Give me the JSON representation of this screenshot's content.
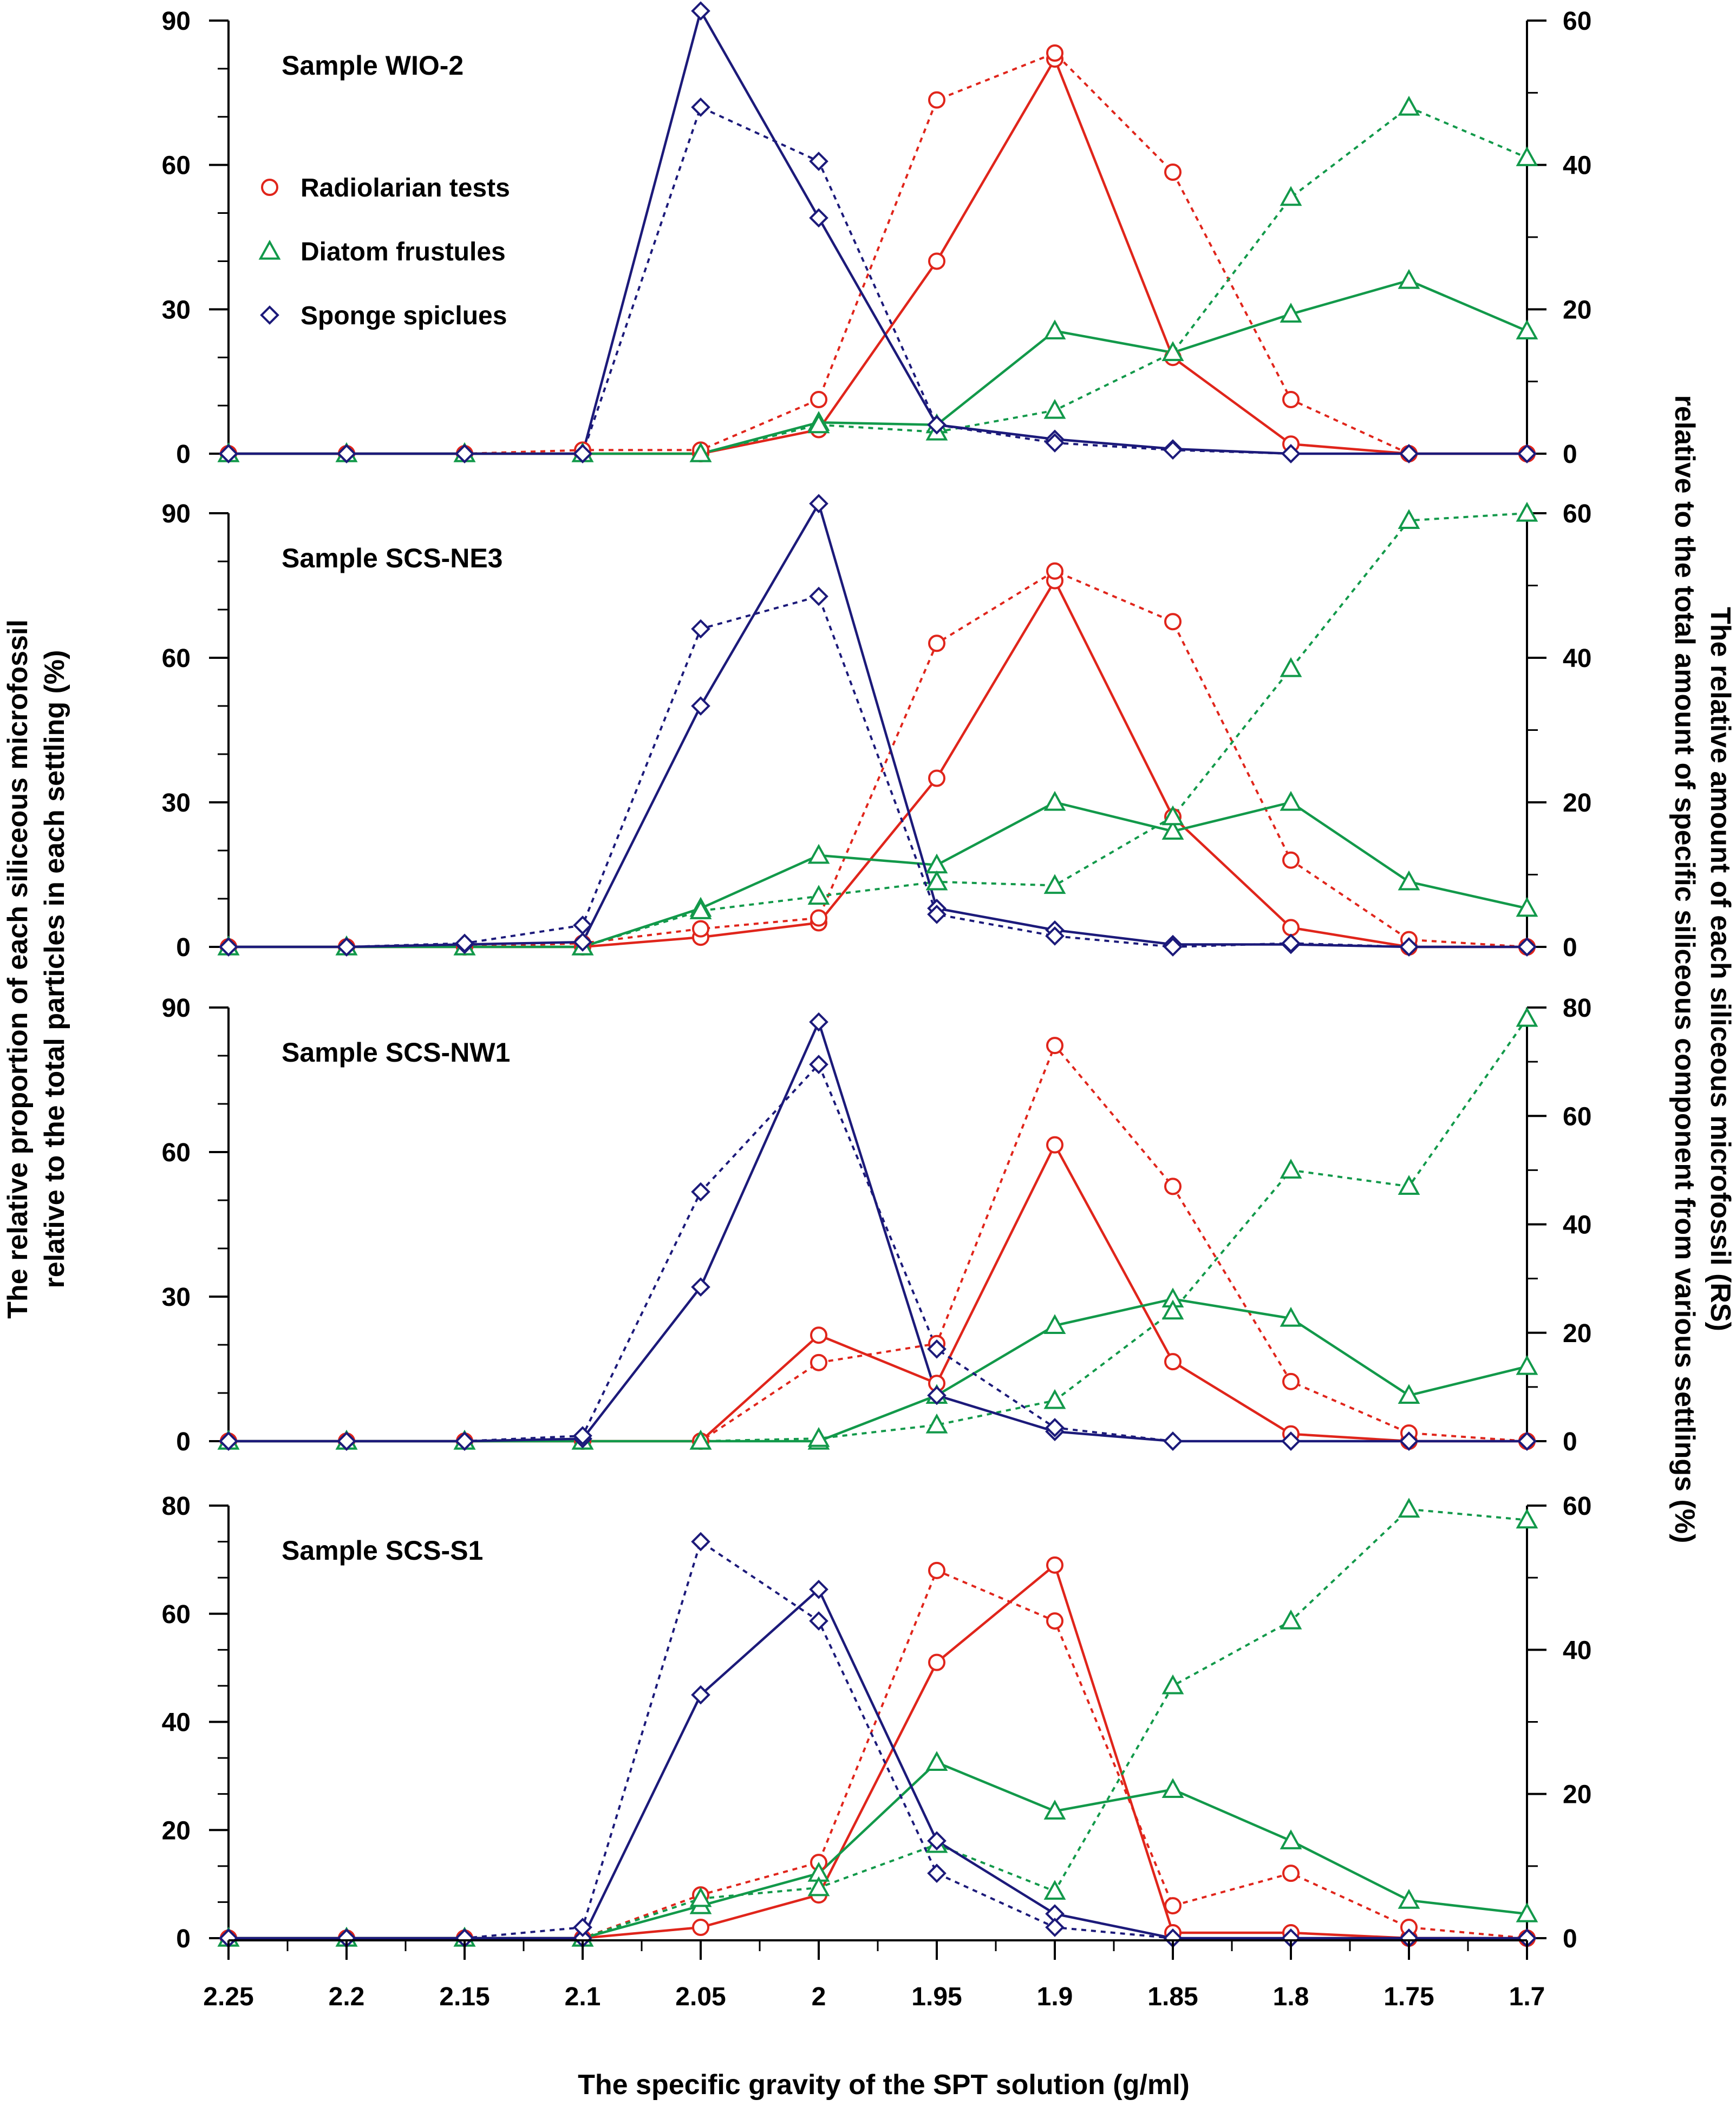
{
  "colors": {
    "radiolarian": "#e0251b",
    "diatom": "#12994a",
    "sponge": "#1c1a7a",
    "axis": "#000000"
  },
  "legend": [
    {
      "key": "radiolarian",
      "label": "Radiolarian tests",
      "marker": "circle"
    },
    {
      "key": "diatom",
      "label": "Diatom frustules",
      "marker": "triangle"
    },
    {
      "key": "sponge",
      "label": "Sponge spiclues",
      "marker": "diamond"
    }
  ],
  "axes": {
    "xlabel": "The specific gravity of the SPT solution (g/ml)",
    "ylabel_left": [
      "The relative proportion of each siliceous microfossil",
      "relative to the total particles in each settling (%)"
    ],
    "ylabel_right": [
      "The relative amount of each siliceous microfossil (RS)",
      "relative to the total amount of specific siliceous component from various settlings (%)"
    ]
  },
  "chart_data": {
    "type": "line",
    "x": [
      2.25,
      2.2,
      2.15,
      2.1,
      2.05,
      2,
      1.95,
      1.9,
      1.85,
      1.8,
      1.75,
      1.7
    ],
    "x_tick_labels": [
      "2.25",
      "2.2",
      "2.15",
      "2.1",
      "2.05",
      "2",
      "1.95",
      "1.9",
      "1.85",
      "1.8",
      "1.75",
      "1.7"
    ],
    "line_styles": {
      "solid": "left axis: relative proportion (%)",
      "dotted": "right axis: RS (%)"
    },
    "panels": [
      {
        "title": "Sample WIO-2",
        "ylim_left": [
          0,
          90
        ],
        "yticks_left": [
          "90",
          "60",
          "30",
          "0"
        ],
        "ylim_right": [
          0,
          60
        ],
        "yticks_right": [
          "60",
          "40",
          "20",
          "0"
        ],
        "show_legend": true,
        "series": [
          {
            "name": "Radiolarian tests",
            "key": "radiolarian",
            "style": "solid",
            "axis": "left",
            "values": [
              0,
              0,
              0,
              0,
              0,
              5,
              40,
              82,
              20,
              2,
              0,
              0
            ]
          },
          {
            "name": "Radiolarian tests",
            "key": "radiolarian",
            "style": "dotted",
            "axis": "right",
            "values": [
              0,
              0,
              0,
              0.5,
              0.5,
              7.5,
              49,
              55.5,
              39,
              7.5,
              0,
              0
            ]
          },
          {
            "name": "Diatom frustules",
            "key": "diatom",
            "style": "solid",
            "axis": "left",
            "values": [
              0,
              0,
              0,
              0,
              0,
              6.5,
              6,
              25.5,
              21,
              29,
              36,
              25.5
            ]
          },
          {
            "name": "Diatom frustules",
            "key": "diatom",
            "style": "dotted",
            "axis": "right",
            "values": [
              0,
              0,
              0,
              0,
              0,
              4,
              3,
              6,
              14,
              35.5,
              48,
              41
            ]
          },
          {
            "name": "Sponge spiclues",
            "key": "sponge",
            "style": "solid",
            "axis": "left",
            "values": [
              0,
              0,
              0,
              0,
              92,
              49,
              6,
              3,
              1,
              0,
              0,
              0
            ]
          },
          {
            "name": "Sponge spiclues",
            "key": "sponge",
            "style": "dotted",
            "axis": "right",
            "values": [
              0,
              0,
              0,
              0,
              48,
              40.5,
              4,
              1.5,
              0.5,
              0,
              0,
              0
            ]
          }
        ]
      },
      {
        "title": "Sample SCS-NE3",
        "ylim_left": [
          0,
          90
        ],
        "yticks_left": [
          "90",
          "60",
          "30",
          "0"
        ],
        "ylim_right": [
          0,
          60
        ],
        "yticks_right": [
          "60",
          "40",
          "20",
          "0"
        ],
        "show_legend": false,
        "series": [
          {
            "name": "Radiolarian tests",
            "key": "radiolarian",
            "style": "solid",
            "axis": "left",
            "values": [
              0,
              0,
              0,
              0,
              2,
              5,
              35,
              76,
              27,
              4,
              0,
              0
            ]
          },
          {
            "name": "Radiolarian tests",
            "key": "radiolarian",
            "style": "dotted",
            "axis": "right",
            "values": [
              0,
              0,
              0,
              0.5,
              2.5,
              4,
              42,
              52,
              45,
              12,
              1,
              0
            ]
          },
          {
            "name": "Diatom frustules",
            "key": "diatom",
            "style": "solid",
            "axis": "left",
            "values": [
              0,
              0,
              0,
              0,
              8,
              19,
              17,
              30,
              24,
              30,
              13.5,
              8
            ]
          },
          {
            "name": "Diatom frustules",
            "key": "diatom",
            "style": "dotted",
            "axis": "right",
            "values": [
              0,
              0,
              0,
              0,
              5,
              7,
              9,
              8.5,
              18,
              38.5,
              59,
              60
            ]
          },
          {
            "name": "Sponge spiclues",
            "key": "sponge",
            "style": "solid",
            "axis": "left",
            "values": [
              0,
              0,
              0.5,
              1,
              50,
              92,
              8,
              3.5,
              0.5,
              0.5,
              0,
              0
            ]
          },
          {
            "name": "Sponge spiclues",
            "key": "sponge",
            "style": "dotted",
            "axis": "right",
            "values": [
              0,
              0,
              0.5,
              3,
              44,
              48.5,
              4.5,
              1.5,
              0,
              0.5,
              0,
              0
            ]
          }
        ]
      },
      {
        "title": "Sample SCS-NW1",
        "ylim_left": [
          0,
          90
        ],
        "yticks_left": [
          "90",
          "60",
          "30",
          "0"
        ],
        "ylim_right": [
          0,
          80
        ],
        "yticks_right": [
          "80",
          "60",
          "40",
          "20",
          "0"
        ],
        "show_legend": false,
        "series": [
          {
            "name": "Radiolarian tests",
            "key": "radiolarian",
            "style": "solid",
            "axis": "left",
            "values": [
              0,
              0,
              0,
              0,
              0,
              22,
              12,
              61.5,
              16.5,
              1.5,
              0,
              0
            ]
          },
          {
            "name": "Radiolarian tests",
            "key": "radiolarian",
            "style": "dotted",
            "axis": "right",
            "values": [
              0,
              0,
              0,
              0,
              0,
              14.5,
              18,
              73,
              47,
              11,
              1.5,
              0
            ]
          },
          {
            "name": "Diatom frustules",
            "key": "diatom",
            "style": "solid",
            "axis": "left",
            "values": [
              0,
              0,
              0,
              0,
              0,
              0,
              9.5,
              24,
              29.5,
              25.5,
              9.5,
              15.5
            ]
          },
          {
            "name": "Diatom frustules",
            "key": "diatom",
            "style": "dotted",
            "axis": "right",
            "values": [
              0,
              0,
              0,
              0,
              0,
              0.5,
              3,
              7.5,
              24,
              50,
              47,
              78
            ]
          },
          {
            "name": "Sponge spiclues",
            "key": "sponge",
            "style": "solid",
            "axis": "left",
            "values": [
              0,
              0,
              0,
              0.5,
              32,
              87,
              9.5,
              2,
              0,
              0,
              0,
              0
            ]
          },
          {
            "name": "Sponge spiclues",
            "key": "sponge",
            "style": "dotted",
            "axis": "right",
            "values": [
              0,
              0,
              0,
              1,
              46,
              69.5,
              17,
              2.5,
              0,
              0,
              0,
              0
            ]
          }
        ]
      },
      {
        "title": "Sample SCS-S1",
        "ylim_left": [
          0,
          80
        ],
        "yticks_left": [
          "80",
          "60",
          "40",
          "20",
          "0"
        ],
        "ylim_right": [
          0,
          60
        ],
        "yticks_right": [
          "60",
          "40",
          "20",
          "0"
        ],
        "show_legend": false,
        "series": [
          {
            "name": "Radiolarian tests",
            "key": "radiolarian",
            "style": "solid",
            "axis": "left",
            "values": [
              0,
              0,
              0,
              0,
              2,
              8,
              51,
              69,
              1,
              1,
              0,
              0
            ]
          },
          {
            "name": "Radiolarian tests",
            "key": "radiolarian",
            "style": "dotted",
            "axis": "right",
            "values": [
              0,
              0,
              0,
              0,
              6,
              10.5,
              51,
              44,
              4.5,
              9,
              1.5,
              0
            ]
          },
          {
            "name": "Diatom frustules",
            "key": "diatom",
            "style": "solid",
            "axis": "left",
            "values": [
              0,
              0,
              0,
              0,
              6,
              12,
              32.5,
              23.5,
              27.5,
              18,
              7,
              4.5
            ]
          },
          {
            "name": "Diatom frustules",
            "key": "diatom",
            "style": "dotted",
            "axis": "right",
            "values": [
              0,
              0,
              0,
              0,
              5.5,
              7,
              13,
              6.5,
              35,
              44,
              59.5,
              58
            ]
          },
          {
            "name": "Sponge spiclues",
            "key": "sponge",
            "style": "solid",
            "axis": "left",
            "values": [
              0,
              0,
              0,
              0,
              45,
              64.5,
              18,
              4.5,
              0,
              0,
              0,
              0
            ]
          },
          {
            "name": "Sponge spiclues",
            "key": "sponge",
            "style": "dotted",
            "axis": "right",
            "values": [
              0,
              0,
              0,
              1.5,
              55,
              44,
              9,
              1.5,
              0,
              0,
              0,
              0
            ]
          }
        ]
      }
    ]
  }
}
